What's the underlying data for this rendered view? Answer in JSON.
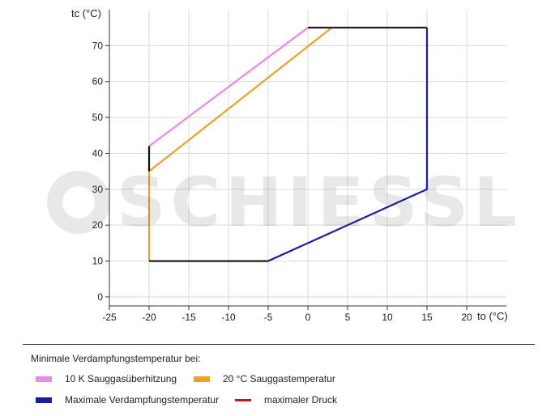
{
  "chart_data": {
    "type": "line",
    "xlabel": "to (°C)",
    "ylabel": "tc (°C)",
    "xlim": [
      -25,
      25
    ],
    "ylim": [
      -2.5,
      80
    ],
    "xticks": [
      -25,
      -20,
      -15,
      -10,
      -5,
      0,
      5,
      10,
      15,
      20
    ],
    "yticks": [
      0,
      10,
      20,
      30,
      40,
      50,
      60,
      70
    ],
    "grid": true,
    "series": [
      {
        "name": "10 K Sauggasüberhitzung",
        "color": "#ee88ee",
        "points": [
          [
            -20,
            42
          ],
          [
            0,
            75
          ]
        ]
      },
      {
        "name": "20 °C Sauggastemperatur",
        "color": "#f0a020",
        "points": [
          [
            -20,
            10
          ],
          [
            -20,
            35
          ],
          [
            3,
            75
          ]
        ]
      },
      {
        "name": "Maximale Verdampfungstemperatur",
        "color": "#1a1aaa",
        "points": [
          [
            -5,
            10
          ],
          [
            15,
            30
          ],
          [
            15,
            75
          ]
        ]
      },
      {
        "name": "",
        "color": "#111111",
        "points": [
          [
            -20,
            10
          ],
          [
            -5,
            10
          ]
        ]
      },
      {
        "name": "",
        "color": "#111111",
        "points": [
          [
            0,
            75
          ],
          [
            15,
            75
          ]
        ]
      },
      {
        "name": "",
        "color": "#111111",
        "points": [
          [
            -20,
            35
          ],
          [
            -20,
            42
          ]
        ]
      }
    ]
  },
  "watermark": {
    "text": "SCHIESSL"
  },
  "legend": {
    "title": "Minimale Verdampfungstemperatur bei:",
    "items": [
      {
        "label": "10 K Sauggasüberhitzung",
        "color": "#ee88ee"
      },
      {
        "label": "20 °C Sauggastemperatur",
        "color": "#f0a020"
      },
      {
        "label": "Maximale Verdampfungstemperatur",
        "color": "#1a1aaa"
      },
      {
        "label": "maximaler Druck",
        "color": "#d01010"
      }
    ]
  }
}
